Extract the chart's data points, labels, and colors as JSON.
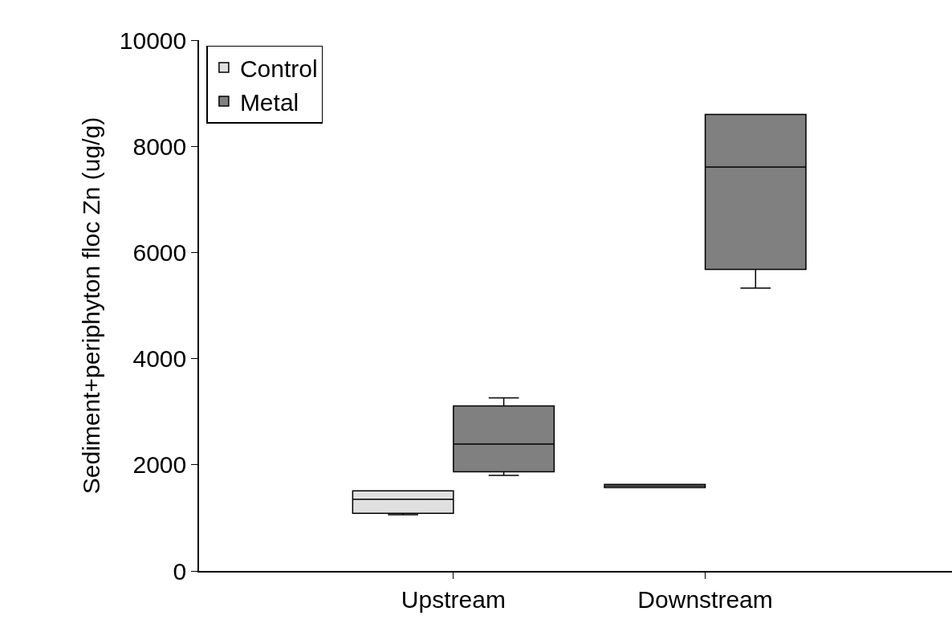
{
  "chart_data": {
    "type": "box",
    "ylabel": "Sediment+periphyton floc Zn (ug/g)",
    "categories": [
      "Upstream",
      "Downstream"
    ],
    "ylim": [
      0,
      10000
    ],
    "yticks": [
      0,
      2000,
      4000,
      6000,
      8000,
      10000
    ],
    "legend": "top left",
    "series": [
      {
        "name": "Control",
        "color": "#e0e0e0",
        "boxes": [
          {
            "low": 1060,
            "q1": 1085,
            "median": 1350,
            "q3": 1510,
            "high": 1510
          },
          {
            "low": 1570,
            "q1": 1570,
            "median": 1600,
            "q3": 1630,
            "high": 1630
          }
        ]
      },
      {
        "name": "Metal",
        "color": "#808080",
        "boxes": [
          {
            "low": 1800,
            "q1": 1870,
            "median": 2390,
            "q3": 3110,
            "high": 3260
          },
          {
            "low": 5330,
            "q1": 5680,
            "median": 7610,
            "q3": 8600,
            "high": 8600
          }
        ]
      }
    ]
  }
}
